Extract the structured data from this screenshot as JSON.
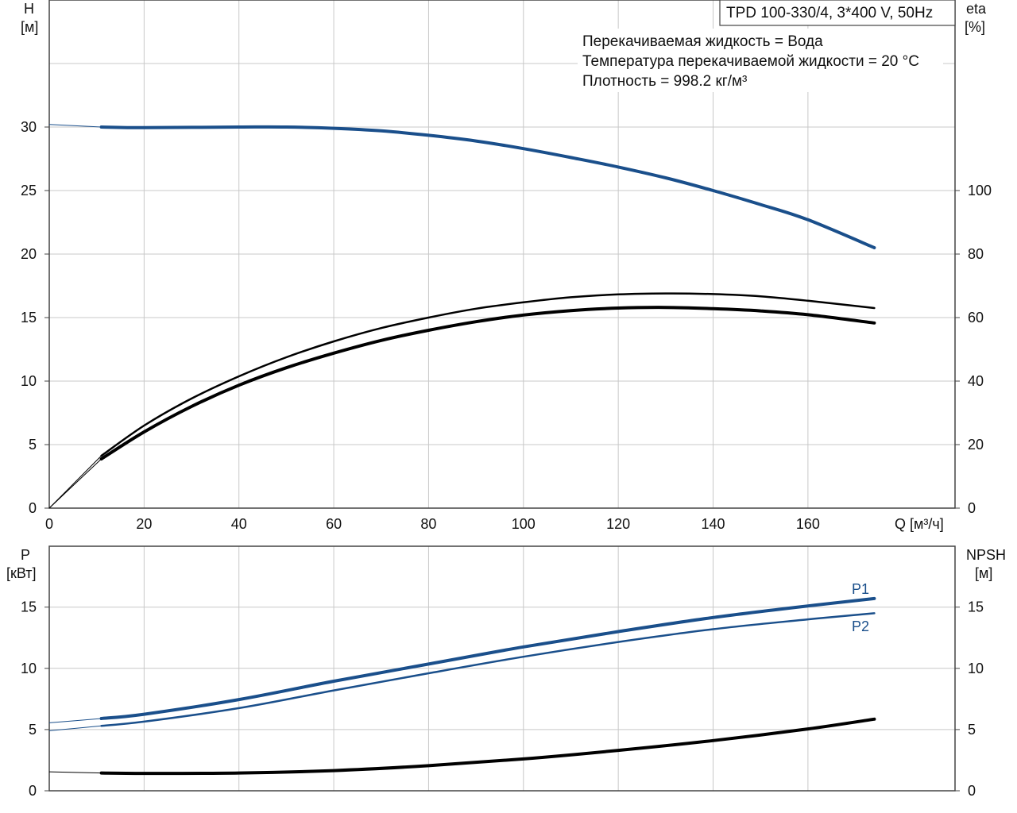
{
  "colors": {
    "blue": "#1a4f8b",
    "black": "#000000",
    "grid": "#c8c8c8",
    "frame": "#444444"
  },
  "title_box": "TPD 100-330/4, 3*400 V, 50Hz",
  "info_lines": [
    "Перекачиваемая жидкость = Вода",
    "Температура перекачиваемой жидкости = 20 °C",
    "Плотность = 998.2 кг/м³"
  ],
  "chart_data": [
    {
      "type": "line",
      "panel": "top",
      "x_axis": {
        "label": "Q [м³/ч]",
        "range": [
          0,
          180
        ],
        "ticks": [
          0,
          20,
          40,
          60,
          80,
          100,
          120,
          140,
          160
        ]
      },
      "y_left": {
        "label": [
          "H",
          "[м]"
        ],
        "range": [
          0,
          33
        ],
        "ticks": [
          0,
          5,
          10,
          15,
          20,
          25,
          30
        ]
      },
      "y_right": {
        "label": [
          "eta",
          "[%]"
        ],
        "range": [
          0,
          132
        ],
        "ticks": [
          0,
          20,
          40,
          60,
          80,
          100
        ]
      },
      "grid": true,
      "series": [
        {
          "axis": "left",
          "color": "blue",
          "width": 4,
          "points": [
            [
              11,
              30
            ],
            [
              20,
              29.95
            ],
            [
              40,
              30.0
            ],
            [
              50,
              30.0
            ],
            [
              60,
              29.9
            ],
            [
              70,
              29.7
            ],
            [
              80,
              29.35
            ],
            [
              90,
              28.9
            ],
            [
              100,
              28.3
            ],
            [
              110,
              27.6
            ],
            [
              120,
              26.85
            ],
            [
              130,
              26.0
            ],
            [
              140,
              25.0
            ],
            [
              150,
              23.9
            ],
            [
              160,
              22.7
            ],
            [
              174,
              20.5
            ]
          ],
          "ext": [
            [
              0,
              30.2
            ],
            [
              11,
              30
            ]
          ]
        },
        {
          "axis": "right",
          "color": "black",
          "width": 2.5,
          "points": [
            [
              11,
              16.5
            ],
            [
              20,
              26
            ],
            [
              30,
              34.5
            ],
            [
              40,
              41.5
            ],
            [
              50,
              47.5
            ],
            [
              60,
              52.5
            ],
            [
              70,
              56.7
            ],
            [
              80,
              60
            ],
            [
              90,
              62.8
            ],
            [
              100,
              64.8
            ],
            [
              110,
              66.4
            ],
            [
              120,
              67.3
            ],
            [
              130,
              67.6
            ],
            [
              140,
              67.4
            ],
            [
              150,
              66.7
            ],
            [
              160,
              65.3
            ],
            [
              174,
              63.0
            ]
          ],
          "ext": [
            [
              0,
              0
            ],
            [
              11,
              16.5
            ]
          ]
        },
        {
          "axis": "right",
          "color": "black",
          "width": 4,
          "points": [
            [
              11,
              15.5
            ],
            [
              20,
              24
            ],
            [
              30,
              32
            ],
            [
              40,
              38.7
            ],
            [
              50,
              44.2
            ],
            [
              60,
              48.8
            ],
            [
              70,
              52.8
            ],
            [
              80,
              56
            ],
            [
              90,
              58.7
            ],
            [
              100,
              60.8
            ],
            [
              110,
              62.2
            ],
            [
              120,
              63.0
            ],
            [
              130,
              63.2
            ],
            [
              140,
              62.8
            ],
            [
              150,
              62.1
            ],
            [
              160,
              60.9
            ],
            [
              174,
              58.3
            ]
          ],
          "ext": [
            [
              0,
              0
            ],
            [
              11,
              15.5
            ]
          ]
        }
      ]
    },
    {
      "type": "line",
      "panel": "bottom",
      "x_axis": {
        "range": [
          0,
          180
        ],
        "ticks": [
          0,
          20,
          40,
          60,
          80,
          100,
          120,
          140,
          160
        ]
      },
      "y_left": {
        "label": [
          "P",
          "[кВт]"
        ],
        "range": [
          0,
          19.5
        ],
        "ticks": [
          0,
          5,
          10,
          15
        ]
      },
      "y_right": {
        "label": [
          "NPSH",
          "[м]"
        ],
        "range": [
          0,
          19.5
        ],
        "ticks": [
          0,
          5,
          10,
          15
        ]
      },
      "grid": true,
      "series": [
        {
          "name": "P1",
          "axis": "left",
          "color": "blue",
          "width": 4,
          "points": [
            [
              11,
              5.9
            ],
            [
              20,
              6.25
            ],
            [
              40,
              7.45
            ],
            [
              60,
              8.95
            ],
            [
              80,
              10.35
            ],
            [
              100,
              11.75
            ],
            [
              120,
              13.0
            ],
            [
              140,
              14.15
            ],
            [
              160,
              15.1
            ],
            [
              174,
              15.7
            ]
          ],
          "ext": [
            [
              0,
              5.55
            ],
            [
              11,
              5.9
            ]
          ]
        },
        {
          "name": "P2",
          "axis": "left",
          "color": "blue",
          "width": 2.5,
          "points": [
            [
              11,
              5.3
            ],
            [
              20,
              5.65
            ],
            [
              40,
              6.75
            ],
            [
              60,
              8.2
            ],
            [
              80,
              9.6
            ],
            [
              100,
              10.95
            ],
            [
              120,
              12.15
            ],
            [
              140,
              13.2
            ],
            [
              160,
              14.0
            ],
            [
              174,
              14.5
            ]
          ],
          "ext": [
            [
              0,
              4.9
            ],
            [
              11,
              5.3
            ]
          ]
        },
        {
          "axis": "right",
          "color": "black",
          "width": 4,
          "points": [
            [
              11,
              1.45
            ],
            [
              20,
              1.42
            ],
            [
              40,
              1.45
            ],
            [
              60,
              1.65
            ],
            [
              80,
              2.05
            ],
            [
              100,
              2.6
            ],
            [
              120,
              3.3
            ],
            [
              140,
              4.1
            ],
            [
              160,
              5.05
            ],
            [
              174,
              5.85
            ]
          ],
          "ext": [
            [
              0,
              1.55
            ],
            [
              11,
              1.45
            ]
          ]
        }
      ]
    }
  ]
}
